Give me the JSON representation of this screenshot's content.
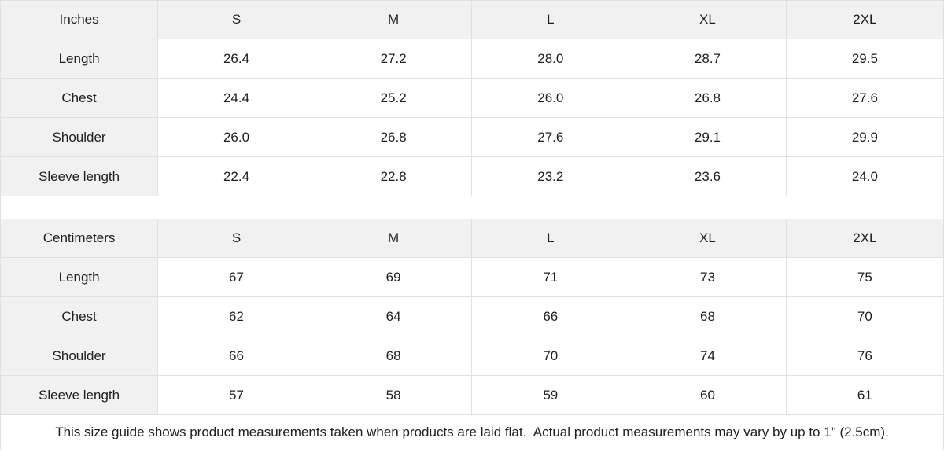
{
  "colors": {
    "header_background": "#f1f1f1",
    "cell_background": "#ffffff",
    "border": "#e0e0e0",
    "text": "#202020"
  },
  "chart_data": {
    "type": "table",
    "tables": [
      {
        "unit_label": "Inches",
        "columns": [
          "S",
          "M",
          "L",
          "XL",
          "2XL"
        ],
        "rows": [
          {
            "label": "Length",
            "values": [
              "26.4",
              "27.2",
              "28.0",
              "28.7",
              "29.5"
            ]
          },
          {
            "label": "Chest",
            "values": [
              "24.4",
              "25.2",
              "26.0",
              "26.8",
              "27.6"
            ]
          },
          {
            "label": "Shoulder",
            "values": [
              "26.0",
              "26.8",
              "27.6",
              "29.1",
              "29.9"
            ]
          },
          {
            "label": "Sleeve length",
            "values": [
              "22.4",
              "22.8",
              "23.2",
              "23.6",
              "24.0"
            ]
          }
        ]
      },
      {
        "unit_label": "Centimeters",
        "columns": [
          "S",
          "M",
          "L",
          "XL",
          "2XL"
        ],
        "rows": [
          {
            "label": "Length",
            "values": [
              "67",
              "69",
              "71",
              "73",
              "75"
            ]
          },
          {
            "label": "Chest",
            "values": [
              "62",
              "64",
              "66",
              "68",
              "70"
            ]
          },
          {
            "label": "Shoulder",
            "values": [
              "66",
              "68",
              "70",
              "74",
              "76"
            ]
          },
          {
            "label": "Sleeve length",
            "values": [
              "57",
              "58",
              "59",
              "60",
              "61"
            ]
          }
        ]
      }
    ],
    "footnote": "This size guide shows product measurements taken when products are laid flat.  Actual product measurements may vary by up to 1\" (2.5cm)."
  }
}
